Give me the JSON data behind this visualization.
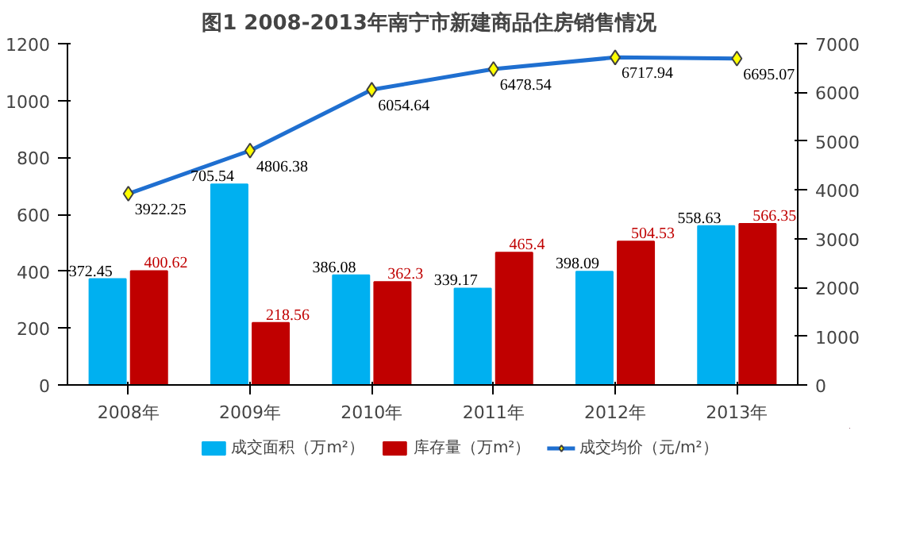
{
  "chart_data": {
    "type": "bar",
    "title": "图1  2008-2013年南宁市新建商品住房销售情况",
    "categories": [
      "2008年",
      "2009年",
      "2010年",
      "2011年",
      "2012年",
      "2013年"
    ],
    "series": [
      {
        "name": "成交面积（万m²）",
        "color": "#00b0f0",
        "values": [
          372.45,
          705.54,
          386.08,
          339.17,
          398.09,
          558.63
        ]
      },
      {
        "name": "库存量（万m²）",
        "color": "#c00000",
        "values": [
          400.62,
          218.56,
          362.3,
          465.4,
          504.53,
          566.35
        ]
      },
      {
        "name": "成交均价（元/m²）",
        "type": "line",
        "axis": "y2",
        "color": "#1f6fd0",
        "marker": "diamond",
        "values": [
          3922.25,
          4806.38,
          6054.64,
          6478.54,
          6717.94,
          6695.07
        ]
      }
    ],
    "ylim": [
      0,
      1200
    ],
    "yticks": [
      0,
      200,
      400,
      600,
      800,
      1000,
      1200
    ],
    "y2lim": [
      0,
      7000
    ],
    "y2ticks": [
      0,
      1000,
      2000,
      3000,
      4000,
      5000,
      6000,
      7000
    ],
    "data_labels": true,
    "grid": false,
    "legend": "bottom"
  }
}
